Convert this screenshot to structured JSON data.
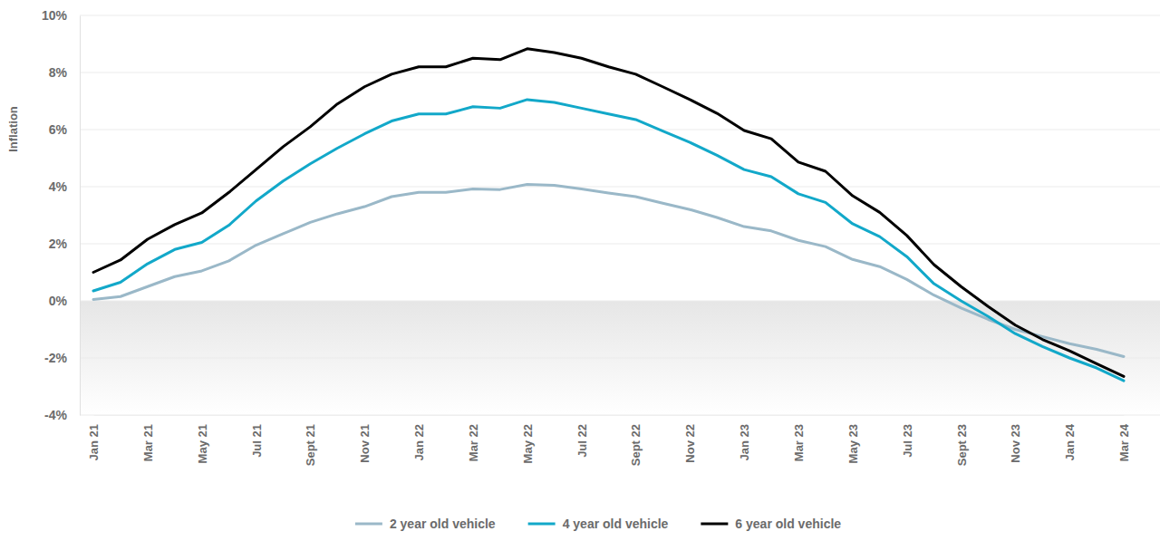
{
  "chart_data": {
    "type": "line",
    "y_label": "Inflation",
    "categories": [
      "Jan 21",
      null,
      "Mar 21",
      null,
      "May 21",
      null,
      "Jul 21",
      null,
      "Sept 21",
      null,
      "Nov 21",
      null,
      "Jan 22",
      null,
      "Mar 22",
      null,
      "May 22",
      null,
      "Jul 22",
      null,
      "Sept 22",
      null,
      "Nov 22",
      null,
      "Jan 23",
      null,
      "Mar 23",
      null,
      "May 23",
      null,
      "Jul 23",
      null,
      "Sept 23",
      null,
      "Nov 23",
      null,
      "Jan 24",
      null,
      "Mar 24"
    ],
    "series": [
      {
        "name": "2 year old vehicle",
        "color": "#9ab8c8",
        "values": [
          0.05,
          0.15,
          0.5,
          0.85,
          1.05,
          1.4,
          1.95,
          2.35,
          2.75,
          3.05,
          3.3,
          3.65,
          3.8,
          3.8,
          3.92,
          3.9,
          4.08,
          4.05,
          3.92,
          3.78,
          3.65,
          3.42,
          3.2,
          2.92,
          2.6,
          2.45,
          2.12,
          1.9,
          1.45,
          1.2,
          0.75,
          0.2,
          -0.25,
          -0.65,
          -1.0,
          -1.25,
          -1.5,
          -1.7,
          -1.95
        ]
      },
      {
        "name": "4 year old vehicle",
        "color": "#12a8c9",
        "values": [
          0.35,
          0.65,
          1.3,
          1.8,
          2.05,
          2.65,
          3.5,
          4.2,
          4.8,
          5.35,
          5.85,
          6.3,
          6.55,
          6.55,
          6.8,
          6.75,
          7.05,
          6.95,
          6.75,
          6.55,
          6.35,
          5.95,
          5.55,
          5.1,
          4.6,
          4.35,
          3.75,
          3.45,
          2.7,
          2.25,
          1.55,
          0.6,
          0.0,
          -0.55,
          -1.15,
          -1.6,
          -2.0,
          -2.35,
          -2.8
        ]
      },
      {
        "name": "6 year old vehicle",
        "color": "#000000",
        "values": [
          1.0,
          1.43,
          2.16,
          2.67,
          3.08,
          3.8,
          4.6,
          5.4,
          6.1,
          6.9,
          7.5,
          7.94,
          8.2,
          8.2,
          8.5,
          8.45,
          8.83,
          8.7,
          8.5,
          8.2,
          7.94,
          7.5,
          7.05,
          6.57,
          5.97,
          5.68,
          4.86,
          4.54,
          3.68,
          3.1,
          2.29,
          1.27,
          0.5,
          -0.2,
          -0.85,
          -1.35,
          -1.75,
          -2.2,
          -2.65
        ]
      }
    ],
    "ylim": [
      -4,
      10
    ],
    "yticks": [
      {
        "value": -4,
        "label": "-4%"
      },
      {
        "value": -2,
        "label": "-2%"
      },
      {
        "value": 0,
        "label": "0%"
      },
      {
        "value": 2,
        "label": "2%"
      },
      {
        "value": 4,
        "label": "4%"
      },
      {
        "value": 6,
        "label": "6%"
      },
      {
        "value": 8,
        "label": "8%"
      },
      {
        "value": 10,
        "label": "10%"
      }
    ],
    "grid": true,
    "legend": "bottom"
  }
}
